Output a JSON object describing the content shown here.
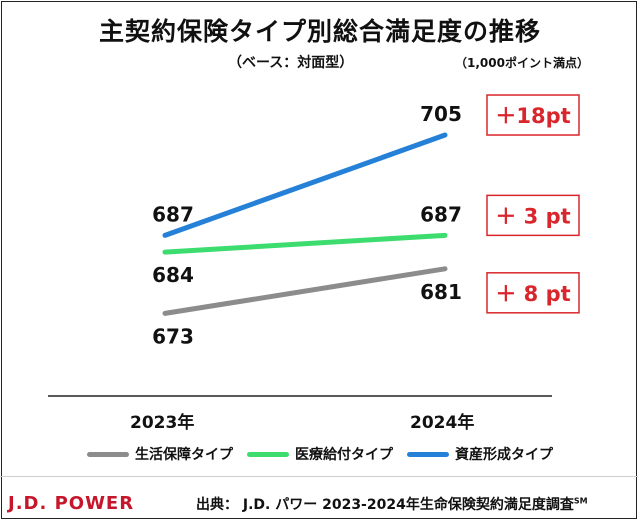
{
  "chart_data": {
    "type": "line",
    "title": "主契約保険タイプ別総合満足度の推移",
    "subtitle": "（ベース：対面型）",
    "note": "（1,000ポイント満点）",
    "categories": [
      "2023年",
      "2024年"
    ],
    "ylim": [
      665,
      712
    ],
    "series": [
      {
        "name": "生活保障タイプ",
        "values": [
          673,
          681
        ],
        "color": "#8c8c8c",
        "change": "＋ 8 pt"
      },
      {
        "name": "医療給付タイプ",
        "values": [
          684,
          687
        ],
        "color": "#3ddc6f",
        "change": "＋ 3 pt"
      },
      {
        "name": "資産形成タイプ",
        "values": [
          687,
          705
        ],
        "color": "#2580d8",
        "change": "＋18pt"
      }
    ],
    "grid": false,
    "legend_position": "bottom"
  },
  "colors": {
    "change_box": "#d9262c",
    "brand": "#c6162b"
  },
  "footer": {
    "brand": "J.D. POWER",
    "source_label": "出典：",
    "source_text": "J.D. パワー 2023-2024年生命保険契約満足度調査",
    "source_mark": "SM"
  }
}
